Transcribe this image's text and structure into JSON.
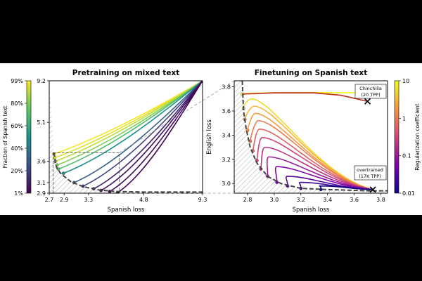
{
  "chart_data": [
    {
      "type": "line",
      "title": "Pretraining on mixed text",
      "xlabel": "Spanish loss",
      "xscale": "reciprocal",
      "xticks": [
        "2.7",
        "2.9",
        "3.3",
        "4.8",
        "9.3"
      ],
      "yticks": [
        "2.9",
        "3.1",
        "3.6",
        "5.1",
        "9.2"
      ],
      "xlim": [
        2.7,
        9.3
      ],
      "ylim": [
        2.9,
        9.2
      ],
      "colorbar": {
        "label": "Fraction of Spanish text",
        "ticks": [
          "1%",
          "20%",
          "40%",
          "60%",
          "80%",
          "99%"
        ],
        "colormap": "viridis"
      },
      "curve_end_points": [
        {
          "fraction": 0.99,
          "x": 2.76,
          "y": 3.81
        },
        {
          "fraction": 0.95,
          "x": 2.77,
          "y": 3.7
        },
        {
          "fraction": 0.9,
          "x": 2.78,
          "y": 3.6
        },
        {
          "fraction": 0.8,
          "x": 2.8,
          "y": 3.5
        },
        {
          "fraction": 0.7,
          "x": 2.82,
          "y": 3.4
        },
        {
          "fraction": 0.5,
          "x": 2.89,
          "y": 3.3
        },
        {
          "fraction": 0.3,
          "x": 3.05,
          "y": 3.1
        },
        {
          "fraction": 0.2,
          "x": 3.2,
          "y": 3.03
        },
        {
          "fraction": 0.1,
          "x": 3.4,
          "y": 2.98
        },
        {
          "fraction": 0.05,
          "x": 3.55,
          "y": 2.95
        },
        {
          "fraction": 0.03,
          "x": 3.75,
          "y": 2.93
        },
        {
          "fraction": 0.01,
          "x": 3.95,
          "y": 2.91
        }
      ],
      "curves_start": {
        "x": 9.3,
        "y": 9.2
      },
      "frontier_x": [
        2.76,
        2.78,
        2.8,
        2.86,
        3.0,
        3.2,
        3.5,
        3.9,
        4.8,
        9.3
      ],
      "frontier_y": [
        3.85,
        3.55,
        3.42,
        3.28,
        3.12,
        3.02,
        2.96,
        2.93,
        2.92,
        2.92
      ],
      "zoom_box": {
        "x": [
          2.75,
          4.0
        ],
        "y": [
          2.9,
          3.85
        ]
      }
    },
    {
      "type": "line",
      "title": "Finetuning on Spanish text",
      "xlabel": "Spanish loss",
      "ylabel": "English loss",
      "xticks": [
        "2.8",
        "3.0",
        "3.2",
        "3.4",
        "3.6",
        "3.8"
      ],
      "yticks": [
        "3.0",
        "3.2",
        "3.4",
        "3.6",
        "3.8"
      ],
      "xlim": [
        2.7,
        3.85
      ],
      "ylim": [
        2.92,
        3.85
      ],
      "colorbar": {
        "label": "Regularization coefficient",
        "ticks": [
          "0.01",
          "0.1",
          "1",
          "10"
        ],
        "scale": "log",
        "colormap": "plasma"
      },
      "annotations": [
        {
          "text": [
            "Chinchilla",
            "(20 TPP)"
          ],
          "x": 3.7,
          "y": 3.68
        },
        {
          "text": [
            "overtrained",
            "(17K TPP)"
          ],
          "x": 3.74,
          "y": 2.95
        }
      ],
      "start_point": {
        "x": 3.74,
        "y": 2.95
      },
      "curve_end_points": [
        {
          "reg": 10,
          "x": 2.76,
          "y": 3.74
        },
        {
          "reg": 6,
          "x": 2.77,
          "y": 3.62
        },
        {
          "reg": 3,
          "x": 2.78,
          "y": 3.53
        },
        {
          "reg": 2,
          "x": 2.8,
          "y": 3.44
        },
        {
          "reg": 1,
          "x": 2.82,
          "y": 3.35
        },
        {
          "reg": 0.6,
          "x": 2.84,
          "y": 3.27
        },
        {
          "reg": 0.3,
          "x": 2.87,
          "y": 3.19
        },
        {
          "reg": 0.2,
          "x": 2.9,
          "y": 3.12
        },
        {
          "reg": 0.1,
          "x": 2.95,
          "y": 3.06
        },
        {
          "reg": 0.06,
          "x": 3.02,
          "y": 3.01
        },
        {
          "reg": 0.03,
          "x": 3.1,
          "y": 2.98
        },
        {
          "reg": 0.02,
          "x": 3.2,
          "y": 2.96
        },
        {
          "reg": 0.01,
          "x": 3.35,
          "y": 2.95
        }
      ],
      "curve_peaks": [
        {
          "reg": 10,
          "x": 3.74,
          "y": 3.74
        },
        {
          "reg": 6,
          "x": 2.83,
          "y": 3.7
        },
        {
          "reg": 3,
          "x": 2.85,
          "y": 3.64
        },
        {
          "reg": 2,
          "x": 2.86,
          "y": 3.58
        },
        {
          "reg": 1,
          "x": 2.88,
          "y": 3.52
        },
        {
          "reg": 0.6,
          "x": 2.89,
          "y": 3.45
        },
        {
          "reg": 0.3,
          "x": 2.91,
          "y": 3.38
        },
        {
          "reg": 0.2,
          "x": 2.93,
          "y": 3.3
        },
        {
          "reg": 0.1,
          "x": 2.96,
          "y": 3.22
        },
        {
          "reg": 0.06,
          "x": 3.02,
          "y": 3.14
        },
        {
          "reg": 0.03,
          "x": 3.1,
          "y": 3.06
        },
        {
          "reg": 0.02,
          "x": 3.2,
          "y": 3.01
        },
        {
          "reg": 0.01,
          "x": 3.35,
          "y": 2.98
        }
      ],
      "chinchilla_curve": {
        "x": [
          2.76,
          3.0,
          3.3,
          3.5,
          3.7
        ],
        "y": [
          3.74,
          3.75,
          3.75,
          3.73,
          3.68
        ]
      },
      "frontier_x": [
        2.76,
        2.77,
        2.79,
        2.82,
        2.87,
        2.95,
        3.05,
        3.2,
        3.4,
        3.7,
        3.85
      ],
      "frontier_y": [
        3.85,
        3.6,
        3.45,
        3.3,
        3.17,
        3.06,
        3.0,
        2.96,
        2.95,
        2.94,
        2.94
      ]
    }
  ]
}
